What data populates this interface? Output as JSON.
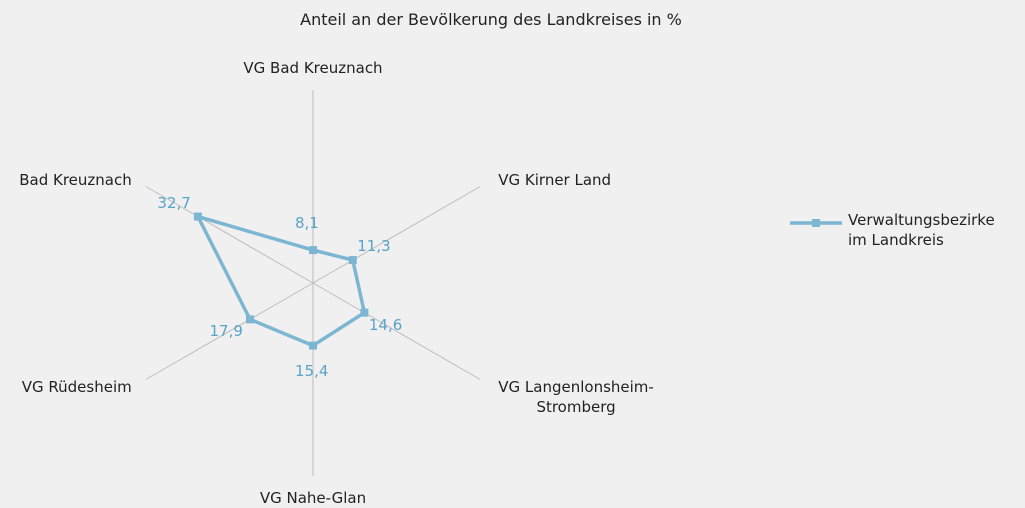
{
  "chart_data": {
    "type": "radar",
    "title": "Anteil an der Bevölkerung des Landkreises in %",
    "categories": [
      "VG Bad Kreuznach",
      "VG Kirner Land",
      "VG Langenlonsheim-\nStromberg",
      "VG Nahe-Glan",
      "VG Rüdesheim",
      "Bad Kreuznach"
    ],
    "series": [
      {
        "name": "Verwaltungsbezirke\nim Landkreis",
        "color": "#7db6d2",
        "values": [
          8.1,
          11.3,
          14.6,
          15.4,
          17.9,
          32.7
        ],
        "value_labels": [
          "8,1",
          "11,3",
          "14,6",
          "15,4",
          "17,9",
          "32,7"
        ]
      }
    ],
    "ylim": [
      0,
      47.5
    ],
    "legend": "right"
  }
}
